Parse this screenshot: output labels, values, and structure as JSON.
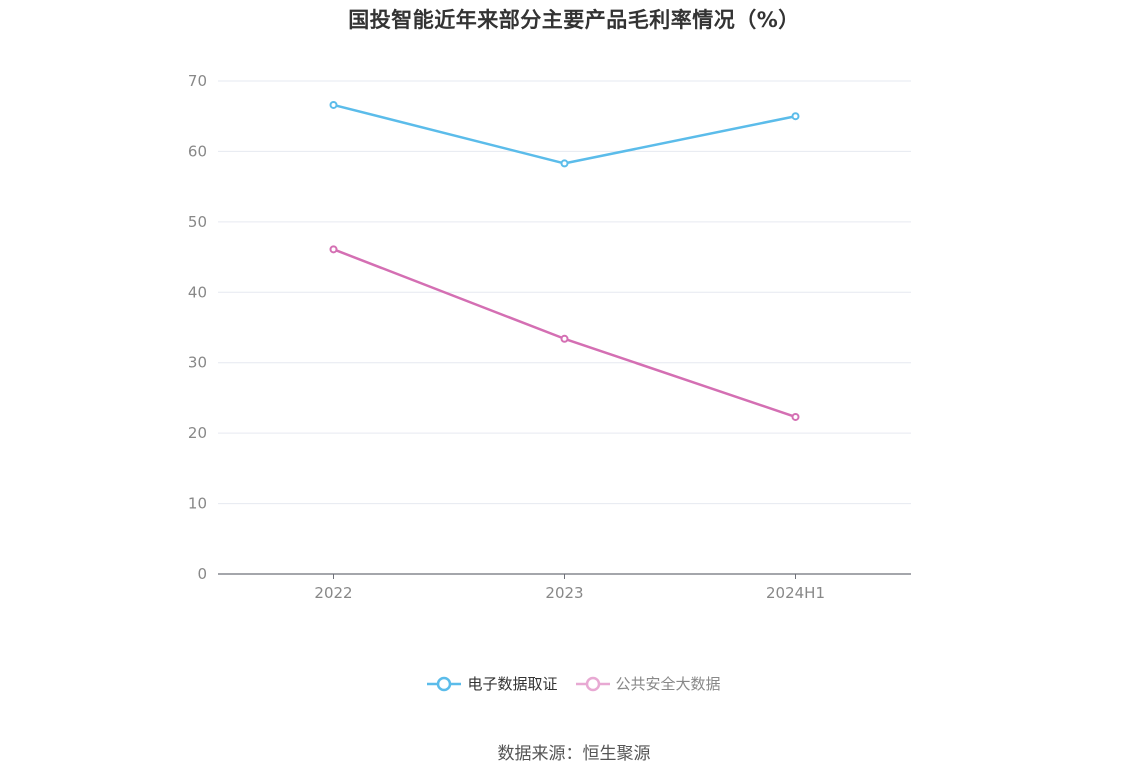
{
  "title": "国投智能近年来部分主要产品毛利率情况（%）",
  "source": "数据来源：恒生聚源",
  "chart_data": {
    "type": "line",
    "title": "国投智能近年来部分主要产品毛利率情况（%）",
    "categories": [
      "2022",
      "2023",
      "2024H1"
    ],
    "series": [
      {
        "name": "电子数据取证",
        "values": [
          66.6,
          58.3,
          65.0
        ],
        "color": "#5bbcea"
      },
      {
        "name": "公共安全大数据",
        "values": [
          46.1,
          33.4,
          22.3
        ],
        "color": "#d46fb3"
      }
    ],
    "yticks": [
      0,
      10,
      20,
      30,
      40,
      50,
      60,
      70
    ],
    "ylim": [
      0,
      70
    ],
    "grid": true,
    "legend_position": "bottom"
  },
  "legend": [
    {
      "label": "电子数据取证",
      "color": "#5bbcea"
    },
    {
      "label": "公共安全大数据",
      "color": "#e8a9d3"
    }
  ]
}
